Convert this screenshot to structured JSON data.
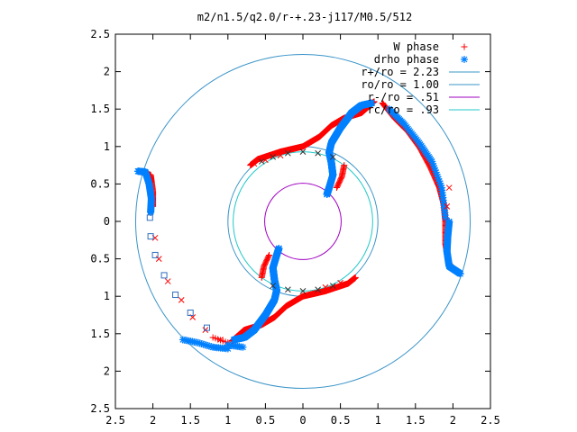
{
  "chart_data": {
    "type": "scatter",
    "title": "m2/n1.5/q2.0/r-+.23-j117/M0.5/512",
    "xlabel": "",
    "ylabel": "",
    "xlim": [
      -2.5,
      2.5
    ],
    "ylim": [
      -2.5,
      2.5
    ],
    "x_tick_labels": [
      "2.5",
      "2",
      "1.5",
      "1",
      "0.5",
      "0",
      "0.5",
      "1",
      "1.5",
      "2",
      "2.5"
    ],
    "y_tick_labels": [
      "2.5",
      "2",
      "1.5",
      "1",
      "0.5",
      "0",
      "0.5",
      "1",
      "1.5",
      "2",
      "2.5"
    ],
    "grid": false,
    "legend_position": "top-right",
    "series": [
      {
        "name": "W phase",
        "kind": "points",
        "marker": "plus",
        "color": "#ff0000"
      },
      {
        "name": "drho phase",
        "kind": "points",
        "marker": "star",
        "color": "#0080ff"
      },
      {
        "name": "r+/ro = 2.23",
        "kind": "circle",
        "radius": 2.23,
        "color": "#3a94c8"
      },
      {
        "name": "ro/ro = 1.00",
        "kind": "circle",
        "radius": 1.0,
        "color": "#3a94c8"
      },
      {
        "name": "r-/ro =  .51",
        "kind": "circle",
        "radius": 0.51,
        "color": "#a000c0"
      },
      {
        "name": "rc/ro =  .93",
        "kind": "circle",
        "radius": 0.93,
        "color": "#20c8c8"
      }
    ],
    "extra_markers": {
      "red_cross": [
        [
          -1.97,
          -0.22
        ],
        [
          -1.92,
          -0.5
        ],
        [
          -1.8,
          -0.8
        ],
        [
          -1.62,
          -1.05
        ],
        [
          -1.47,
          -1.28
        ],
        [
          -1.3,
          -1.45
        ],
        [
          -1.1,
          -1.58
        ],
        [
          -0.65,
          0.77
        ],
        [
          -0.5,
          0.82
        ],
        [
          -0.3,
          0.88
        ],
        [
          0.3,
          -0.88
        ],
        [
          0.5,
          -0.82
        ],
        [
          1.95,
          0.45
        ],
        [
          1.92,
          0.2
        ]
      ],
      "black_cross": [
        [
          -0.55,
          0.8
        ],
        [
          -0.4,
          0.86
        ],
        [
          -0.2,
          0.91
        ],
        [
          0.0,
          0.93
        ],
        [
          0.2,
          0.91
        ],
        [
          0.4,
          0.86
        ],
        [
          -0.4,
          -0.86
        ],
        [
          -0.2,
          -0.91
        ],
        [
          0.0,
          -0.93
        ],
        [
          0.2,
          -0.91
        ],
        [
          0.4,
          -0.86
        ]
      ],
      "blue_square": [
        [
          -2.04,
          0.05
        ],
        [
          -2.03,
          -0.2
        ],
        [
          -1.97,
          -0.45
        ],
        [
          -1.85,
          -0.72
        ],
        [
          -1.7,
          -0.98
        ],
        [
          -1.5,
          -1.22
        ],
        [
          -1.28,
          -1.42
        ]
      ]
    },
    "arms": {
      "w_phase": [
        {
          "path": [
            [
              -0.7,
              0.75
            ],
            [
              -0.6,
              0.83
            ],
            [
              -0.3,
              0.93
            ],
            [
              0.0,
              1.0
            ],
            [
              0.22,
              1.13
            ],
            [
              0.38,
              1.28
            ],
            [
              0.55,
              1.38
            ],
            [
              0.78,
              1.45
            ],
            [
              0.95,
              1.6
            ]
          ],
          "density": 60
        },
        {
          "path": [
            [
              0.7,
              -0.75
            ],
            [
              0.6,
              -0.83
            ],
            [
              0.3,
              -0.93
            ],
            [
              0.0,
              -1.0
            ],
            [
              -0.22,
              -1.13
            ],
            [
              -0.38,
              -1.28
            ],
            [
              -0.55,
              -1.38
            ],
            [
              -0.78,
              -1.45
            ],
            [
              -0.95,
              -1.6
            ]
          ],
          "density": 60
        },
        {
          "path": [
            [
              0.45,
              0.45
            ],
            [
              0.52,
              0.6
            ],
            [
              0.55,
              0.75
            ]
          ],
          "density": 10
        },
        {
          "path": [
            [
              -0.45,
              -0.45
            ],
            [
              -0.52,
              -0.6
            ],
            [
              -0.55,
              -0.75
            ]
          ],
          "density": 10
        },
        {
          "path": [
            [
              1.06,
              1.58
            ],
            [
              1.22,
              1.38
            ],
            [
              1.4,
              1.2
            ],
            [
              1.56,
              0.98
            ],
            [
              1.7,
              0.72
            ],
            [
              1.82,
              0.45
            ],
            [
              1.88,
              0.22
            ],
            [
              1.9,
              0.0
            ],
            [
              1.9,
              -0.3
            ],
            [
              1.94,
              -0.55
            ],
            [
              2.05,
              -0.68
            ]
          ],
          "density": 22
        },
        {
          "path": [
            [
              -2.15,
              0.66
            ],
            [
              -2.03,
              0.62
            ],
            [
              -2.0,
              0.4
            ],
            [
              -2.0,
              0.2
            ]
          ],
          "density": 18
        },
        {
          "path": [
            [
              -1.0,
              -1.62
            ],
            [
              -1.2,
              -1.55
            ]
          ],
          "density": 6
        }
      ],
      "drho_phase": [
        {
          "path": [
            [
              0.32,
              0.36
            ],
            [
              0.35,
              0.45
            ],
            [
              0.4,
              0.62
            ],
            [
              0.38,
              0.78
            ],
            [
              0.35,
              0.92
            ],
            [
              0.38,
              1.05
            ],
            [
              0.5,
              1.25
            ],
            [
              0.65,
              1.45
            ],
            [
              0.78,
              1.55
            ],
            [
              0.92,
              1.58
            ]
          ],
          "density": 60
        },
        {
          "path": [
            [
              -0.32,
              -0.36
            ],
            [
              -0.35,
              -0.45
            ],
            [
              -0.4,
              -0.62
            ],
            [
              -0.38,
              -0.78
            ],
            [
              -0.35,
              -0.92
            ],
            [
              -0.38,
              -1.05
            ],
            [
              -0.5,
              -1.25
            ],
            [
              -0.65,
              -1.45
            ],
            [
              -0.78,
              -1.55
            ],
            [
              -0.92,
              -1.58
            ]
          ],
          "density": 60
        },
        {
          "path": [
            [
              -0.8,
              -1.68
            ],
            [
              -1.0,
              -1.65
            ]
          ],
          "density": 8
        },
        {
          "path": [
            [
              2.1,
              -0.7
            ],
            [
              1.95,
              -0.6
            ],
            [
              1.92,
              -0.4
            ],
            [
              1.93,
              -0.2
            ],
            [
              1.95,
              0.0
            ]
          ],
          "density": 22
        },
        {
          "path": [
            [
              1.9,
              0.05
            ],
            [
              1.85,
              0.45
            ],
            [
              1.72,
              0.8
            ],
            [
              1.55,
              1.05
            ],
            [
              1.35,
              1.3
            ],
            [
              1.15,
              1.5
            ]
          ],
          "density": 12
        },
        {
          "path": [
            [
              -2.2,
              0.67
            ],
            [
              -2.1,
              0.66
            ],
            [
              -2.05,
              0.5
            ],
            [
              -2.02,
              0.3
            ],
            [
              -2.03,
              0.12
            ]
          ],
          "density": 16
        },
        {
          "path": [
            [
              -1.6,
              -1.58
            ],
            [
              -1.4,
              -1.62
            ],
            [
              -1.2,
              -1.68
            ],
            [
              -1.0,
              -1.7
            ]
          ],
          "density": 8
        }
      ]
    }
  }
}
